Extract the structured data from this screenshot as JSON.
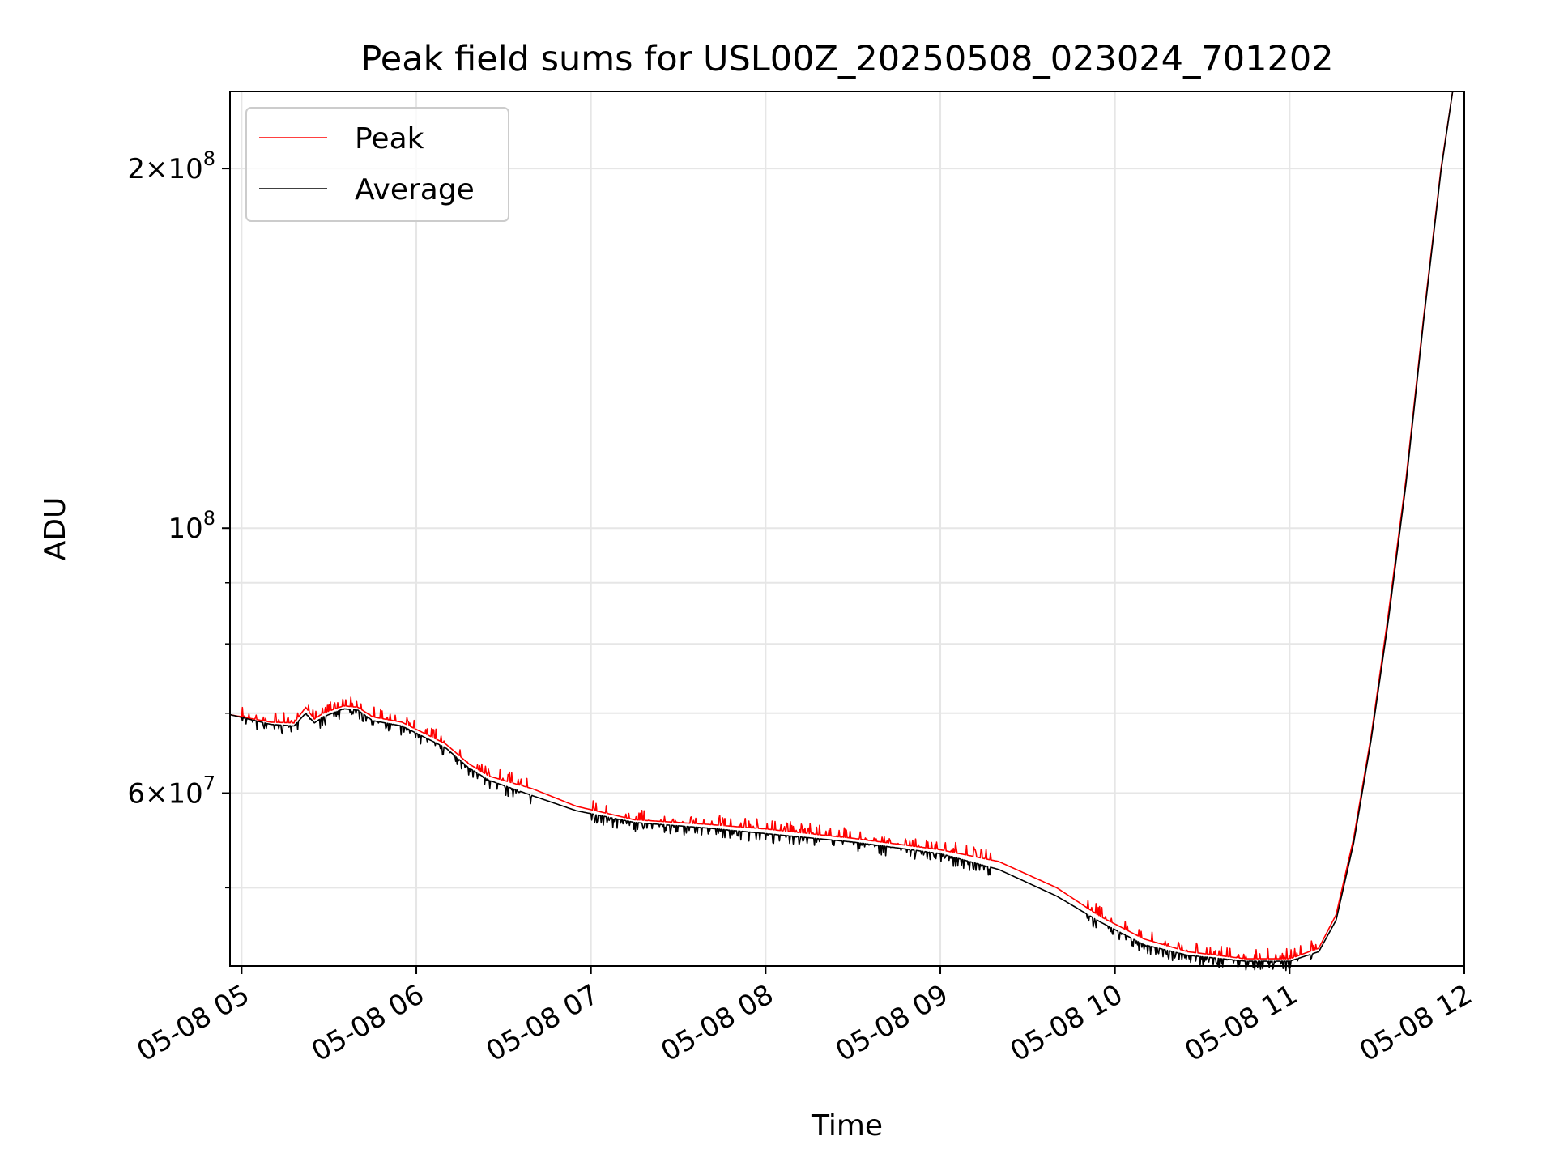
{
  "chart_data": {
    "type": "line",
    "title": "Peak field sums for USL00Z_20250508_023024_701202",
    "xlabel": "Time",
    "ylabel": "ADU",
    "yscale": "log",
    "ylim": [
      43000000,
      232000000
    ],
    "xlim": [
      "2025-05-08 04:56",
      "2025-05-08 12:00"
    ],
    "grid": true,
    "legend_position": "upper-left",
    "x_ticks": [
      {
        "value": "2025-05-08 05:00",
        "label": "05-08 05"
      },
      {
        "value": "2025-05-08 06:00",
        "label": "05-08 06"
      },
      {
        "value": "2025-05-08 07:00",
        "label": "05-08 07"
      },
      {
        "value": "2025-05-08 08:00",
        "label": "05-08 08"
      },
      {
        "value": "2025-05-08 09:00",
        "label": "05-08 09"
      },
      {
        "value": "2025-05-08 10:00",
        "label": "05-08 10"
      },
      {
        "value": "2025-05-08 11:00",
        "label": "05-08 11"
      },
      {
        "value": "2025-05-08 12:00",
        "label": "05-08 12"
      }
    ],
    "y_ticks_major": [
      {
        "value": 60000000,
        "base": "6",
        "exp": "7"
      },
      {
        "value": 100000000,
        "base": "",
        "exp": "8"
      },
      {
        "value": 200000000,
        "base": "2",
        "exp": "8"
      }
    ],
    "y_ticks_minor": [
      50000000,
      70000000,
      80000000,
      90000000
    ],
    "series": [
      {
        "name": "Peak",
        "color": "#ff0000",
        "noise": "up",
        "points": [
          [
            "2025-05-08 04:56",
            69800000
          ],
          [
            "2025-05-08 05:10",
            68800000
          ],
          [
            "2025-05-08 05:18",
            68700000
          ],
          [
            "2025-05-08 05:22",
            70800000
          ],
          [
            "2025-05-08 05:25",
            69200000
          ],
          [
            "2025-05-08 05:28",
            70000000
          ],
          [
            "2025-05-08 05:35",
            71000000
          ],
          [
            "2025-05-08 05:40",
            70800000
          ],
          [
            "2025-05-08 05:45",
            69500000
          ],
          [
            "2025-05-08 05:55",
            68800000
          ],
          [
            "2025-05-08 06:10",
            66000000
          ],
          [
            "2025-05-08 06:18",
            63500000
          ],
          [
            "2025-05-08 06:25",
            62000000
          ],
          [
            "2025-05-08 06:40",
            60500000
          ],
          [
            "2025-05-08 06:55",
            58500000
          ],
          [
            "2025-05-08 07:15",
            57000000
          ],
          [
            "2025-05-08 07:40",
            56500000
          ],
          [
            "2025-05-08 08:00",
            56000000
          ],
          [
            "2025-05-08 08:30",
            55000000
          ],
          [
            "2025-05-08 09:00",
            53800000
          ],
          [
            "2025-05-08 09:20",
            52600000
          ],
          [
            "2025-05-08 09:40",
            50000000
          ],
          [
            "2025-05-08 09:55",
            47300000
          ],
          [
            "2025-05-08 10:10",
            45300000
          ],
          [
            "2025-05-08 10:25",
            44200000
          ],
          [
            "2025-05-08 10:45",
            43600000
          ],
          [
            "2025-05-08 11:00",
            43600000
          ],
          [
            "2025-05-08 11:10",
            44500000
          ],
          [
            "2025-05-08 11:16",
            47500000
          ],
          [
            "2025-05-08 11:22",
            55000000
          ],
          [
            "2025-05-08 11:28",
            67000000
          ],
          [
            "2025-05-08 11:34",
            85000000
          ],
          [
            "2025-05-08 11:40",
            110000000
          ],
          [
            "2025-05-08 11:46",
            150000000
          ],
          [
            "2025-05-08 11:52",
            200000000
          ],
          [
            "2025-05-08 11:56",
            232000000
          ],
          [
            "2025-05-08 11:59",
            232000000
          ]
        ]
      },
      {
        "name": "Average",
        "color": "#000000",
        "noise": "down",
        "points": [
          [
            "2025-05-08 04:56",
            69800000
          ],
          [
            "2025-05-08 05:10",
            68500000
          ],
          [
            "2025-05-08 05:18",
            68300000
          ],
          [
            "2025-05-08 05:22",
            70000000
          ],
          [
            "2025-05-08 05:25",
            68700000
          ],
          [
            "2025-05-08 05:28",
            69500000
          ],
          [
            "2025-05-08 05:35",
            70600000
          ],
          [
            "2025-05-08 05:40",
            70400000
          ],
          [
            "2025-05-08 05:45",
            69000000
          ],
          [
            "2025-05-08 05:55",
            68300000
          ],
          [
            "2025-05-08 06:10",
            65500000
          ],
          [
            "2025-05-08 06:18",
            63000000
          ],
          [
            "2025-05-08 06:25",
            61500000
          ],
          [
            "2025-05-08 06:40",
            59700000
          ],
          [
            "2025-05-08 06:55",
            58000000
          ],
          [
            "2025-05-08 07:15",
            56700000
          ],
          [
            "2025-05-08 07:40",
            56100000
          ],
          [
            "2025-05-08 08:00",
            55500000
          ],
          [
            "2025-05-08 08:30",
            54600000
          ],
          [
            "2025-05-08 09:00",
            53400000
          ],
          [
            "2025-05-08 09:20",
            51800000
          ],
          [
            "2025-05-08 09:40",
            49200000
          ],
          [
            "2025-05-08 09:55",
            46800000
          ],
          [
            "2025-05-08 10:10",
            44800000
          ],
          [
            "2025-05-08 10:25",
            43900000
          ],
          [
            "2025-05-08 10:45",
            43400000
          ],
          [
            "2025-05-08 11:00",
            43400000
          ],
          [
            "2025-05-08 11:10",
            44200000
          ],
          [
            "2025-05-08 11:16",
            47000000
          ],
          [
            "2025-05-08 11:22",
            54500000
          ],
          [
            "2025-05-08 11:28",
            66500000
          ],
          [
            "2025-05-08 11:34",
            84000000
          ],
          [
            "2025-05-08 11:40",
            109000000
          ],
          [
            "2025-05-08 11:46",
            149000000
          ],
          [
            "2025-05-08 11:52",
            199000000
          ],
          [
            "2025-05-08 11:56",
            232000000
          ],
          [
            "2025-05-08 11:59",
            232000000
          ]
        ]
      }
    ]
  }
}
